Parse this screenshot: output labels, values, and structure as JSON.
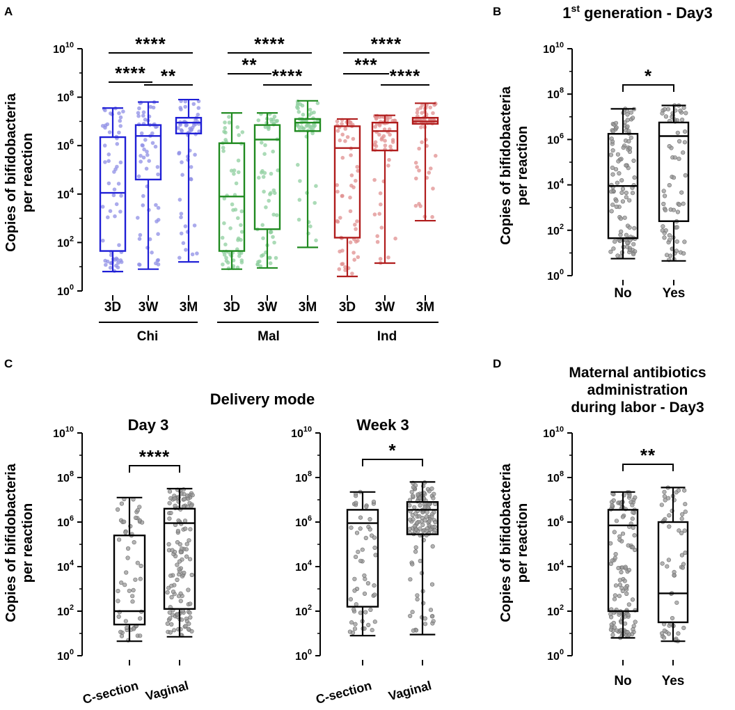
{
  "colors": {
    "chi": "#1f1fd6",
    "mal": "#1f8a1f",
    "ind": "#b01c1c",
    "chi_dot": "#8f8fe6",
    "mal_dot": "#8fcf9f",
    "ind_dot": "#e08f8f",
    "black": "#000000",
    "gray_dot": "#9a9a9a"
  },
  "chart_data": [
    {
      "panel": "A",
      "type": "box",
      "title": "",
      "ylabel": "Copies of bifidobacteria per reaction",
      "yscale": "log10",
      "ylim_exp": [
        0,
        10
      ],
      "ytick_exponents": [
        0,
        2,
        4,
        6,
        8,
        10
      ],
      "categories": [
        "3D",
        "3W",
        "3M",
        "3D",
        "3W",
        "3M",
        "3D",
        "3W",
        "3M"
      ],
      "groups": [
        "Chi",
        "Mal",
        "Ind"
      ],
      "boxes": [
        {
          "name": "Chi 3D",
          "group": "Chi",
          "min_exp": 0.8,
          "q1_exp": 1.65,
          "median_exp": 4.05,
          "q3_exp": 6.35,
          "max_exp": 7.55,
          "n": 60
        },
        {
          "name": "Chi 3W",
          "group": "Chi",
          "min_exp": 0.9,
          "q1_exp": 4.6,
          "median_exp": 6.4,
          "q3_exp": 6.85,
          "max_exp": 7.8,
          "n": 60
        },
        {
          "name": "Chi 3M",
          "group": "Chi",
          "min_exp": 1.2,
          "q1_exp": 6.5,
          "median_exp": 6.95,
          "q3_exp": 7.15,
          "max_exp": 7.9,
          "n": 60
        },
        {
          "name": "Mal 3D",
          "group": "Mal",
          "min_exp": 0.9,
          "q1_exp": 1.65,
          "median_exp": 3.9,
          "q3_exp": 6.1,
          "max_exp": 7.35,
          "n": 60
        },
        {
          "name": "Mal 3W",
          "group": "Mal",
          "min_exp": 0.95,
          "q1_exp": 2.55,
          "median_exp": 6.25,
          "q3_exp": 6.85,
          "max_exp": 7.35,
          "n": 60
        },
        {
          "name": "Mal 3M",
          "group": "Mal",
          "min_exp": 1.8,
          "q1_exp": 6.6,
          "median_exp": 6.95,
          "q3_exp": 7.1,
          "max_exp": 7.85,
          "n": 60
        },
        {
          "name": "Ind 3D",
          "group": "Ind",
          "min_exp": 0.6,
          "q1_exp": 2.2,
          "median_exp": 5.9,
          "q3_exp": 6.8,
          "max_exp": 7.1,
          "n": 60
        },
        {
          "name": "Ind 3W",
          "group": "Ind",
          "min_exp": 1.15,
          "q1_exp": 5.8,
          "median_exp": 6.6,
          "q3_exp": 6.95,
          "max_exp": 7.25,
          "n": 60
        },
        {
          "name": "Ind 3M",
          "group": "Ind",
          "min_exp": 2.9,
          "q1_exp": 6.9,
          "median_exp": 7.0,
          "q3_exp": 7.15,
          "max_exp": 7.75,
          "n": 60
        }
      ],
      "significance": [
        {
          "from": 0,
          "to": 1,
          "label": "****"
        },
        {
          "from": 1,
          "to": 2,
          "label": "**"
        },
        {
          "from": 0,
          "to": 2,
          "label": "****"
        },
        {
          "from": 3,
          "to": 4,
          "label": "**"
        },
        {
          "from": 4,
          "to": 5,
          "label": "****"
        },
        {
          "from": 3,
          "to": 5,
          "label": "****"
        },
        {
          "from": 6,
          "to": 7,
          "label": "***"
        },
        {
          "from": 7,
          "to": 8,
          "label": "****"
        },
        {
          "from": 6,
          "to": 8,
          "label": "****"
        }
      ]
    },
    {
      "panel": "B",
      "type": "box",
      "title": "1st generation - Day3",
      "title_main": "1",
      "title_sup": "st",
      "title_rest": " generation - Day3",
      "ylabel": "Copies of bifidobacteria per reaction",
      "yscale": "log10",
      "ylim_exp": [
        0,
        10
      ],
      "ytick_exponents": [
        0,
        2,
        4,
        6,
        8,
        10
      ],
      "categories": [
        "No",
        "Yes"
      ],
      "boxes": [
        {
          "name": "No",
          "min_exp": 0.75,
          "q1_exp": 1.65,
          "median_exp": 3.95,
          "q3_exp": 6.25,
          "max_exp": 7.35,
          "n": 110
        },
        {
          "name": "Yes",
          "min_exp": 0.65,
          "q1_exp": 2.4,
          "median_exp": 6.15,
          "q3_exp": 6.75,
          "max_exp": 7.5,
          "n": 70
        }
      ],
      "significance": [
        {
          "from": 0,
          "to": 1,
          "label": "*"
        }
      ]
    },
    {
      "panel": "C",
      "type": "box",
      "title": "Day 3",
      "group_title": "Delivery mode",
      "ylabel": "Copies of bifidobacteria per reaction",
      "yscale": "log10",
      "ylim_exp": [
        0,
        10
      ],
      "ytick_exponents": [
        0,
        2,
        4,
        6,
        8,
        10
      ],
      "categories": [
        "C-section",
        "Vaginal"
      ],
      "boxes": [
        {
          "name": "C-section",
          "min_exp": 0.65,
          "q1_exp": 1.4,
          "median_exp": 2.0,
          "q3_exp": 5.4,
          "max_exp": 7.1,
          "n": 55
        },
        {
          "name": "Vaginal",
          "min_exp": 0.85,
          "q1_exp": 2.1,
          "median_exp": 5.95,
          "q3_exp": 6.6,
          "max_exp": 7.5,
          "n": 130
        }
      ],
      "significance": [
        {
          "from": 0,
          "to": 1,
          "label": "****"
        }
      ]
    },
    {
      "panel": "C",
      "type": "box",
      "title": "Week 3",
      "ylabel": "",
      "yscale": "log10",
      "ylim_exp": [
        0,
        10
      ],
      "ytick_exponents": [
        0,
        2,
        4,
        6,
        8,
        10
      ],
      "categories": [
        "C-section",
        "Vaginal"
      ],
      "boxes": [
        {
          "name": "C-section",
          "min_exp": 0.9,
          "q1_exp": 2.2,
          "median_exp": 5.95,
          "q3_exp": 6.55,
          "max_exp": 7.35,
          "n": 55
        },
        {
          "name": "Vaginal",
          "min_exp": 0.95,
          "q1_exp": 5.45,
          "median_exp": 6.55,
          "q3_exp": 6.9,
          "max_exp": 7.8,
          "n": 130
        }
      ],
      "significance": [
        {
          "from": 0,
          "to": 1,
          "label": "*"
        }
      ]
    },
    {
      "panel": "D",
      "type": "box",
      "title": "Maternal antibiotics administration during labor - Day3",
      "title_lines": [
        "Maternal antibiotics",
        "administration",
        "during labor - Day3"
      ],
      "ylabel": "Copies of bifidobacteria per reaction",
      "yscale": "log10",
      "ylim_exp": [
        0,
        10
      ],
      "ytick_exponents": [
        0,
        2,
        4,
        6,
        8,
        10
      ],
      "categories": [
        "No",
        "Yes"
      ],
      "boxes": [
        {
          "name": "No",
          "min_exp": 0.8,
          "q1_exp": 2.0,
          "median_exp": 5.85,
          "q3_exp": 6.55,
          "max_exp": 7.35,
          "n": 130
        },
        {
          "name": "Yes",
          "min_exp": 0.65,
          "q1_exp": 1.5,
          "median_exp": 2.8,
          "q3_exp": 6.0,
          "max_exp": 7.55,
          "n": 55
        }
      ],
      "significance": [
        {
          "from": 0,
          "to": 1,
          "label": "**"
        }
      ]
    }
  ],
  "panel_labels": [
    "A",
    "B",
    "C",
    "D"
  ],
  "axis": {
    "base": "10"
  }
}
